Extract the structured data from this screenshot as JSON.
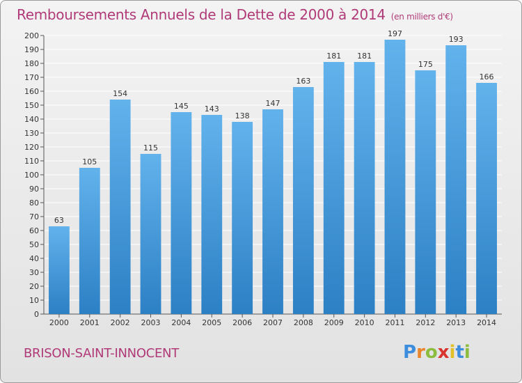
{
  "header": {
    "title": "Remboursements Annuels de la Dette de 2000 à 2014",
    "unit": "(en milliers d'€)"
  },
  "footer": {
    "town": "BRISON-SAINT-INNOCENT",
    "logo": {
      "letters": [
        "P",
        "r",
        "o",
        "x",
        "i",
        "t",
        "i"
      ],
      "colors": [
        "#3c8dde",
        "#e9852b",
        "#8cbd3f",
        "#d8332d",
        "#e0c024",
        "#3c8dde",
        "#8cbd3f"
      ]
    }
  },
  "colors": {
    "bar_light": "#62b2ec",
    "bar_dark": "#2c80c4",
    "grid": "#ffffff",
    "text": "#333333"
  },
  "chart_data": {
    "type": "bar",
    "categories": [
      "2000",
      "2001",
      "2002",
      "2003",
      "2004",
      "2005",
      "2006",
      "2007",
      "2008",
      "2009",
      "2010",
      "2011",
      "2012",
      "2013",
      "2014"
    ],
    "values": [
      63,
      105,
      154,
      115,
      145,
      143,
      138,
      147,
      163,
      181,
      181,
      197,
      175,
      193,
      166
    ],
    "ylim": [
      0,
      200
    ],
    "ytick_step": 10,
    "grid": true,
    "data_labels": true
  }
}
